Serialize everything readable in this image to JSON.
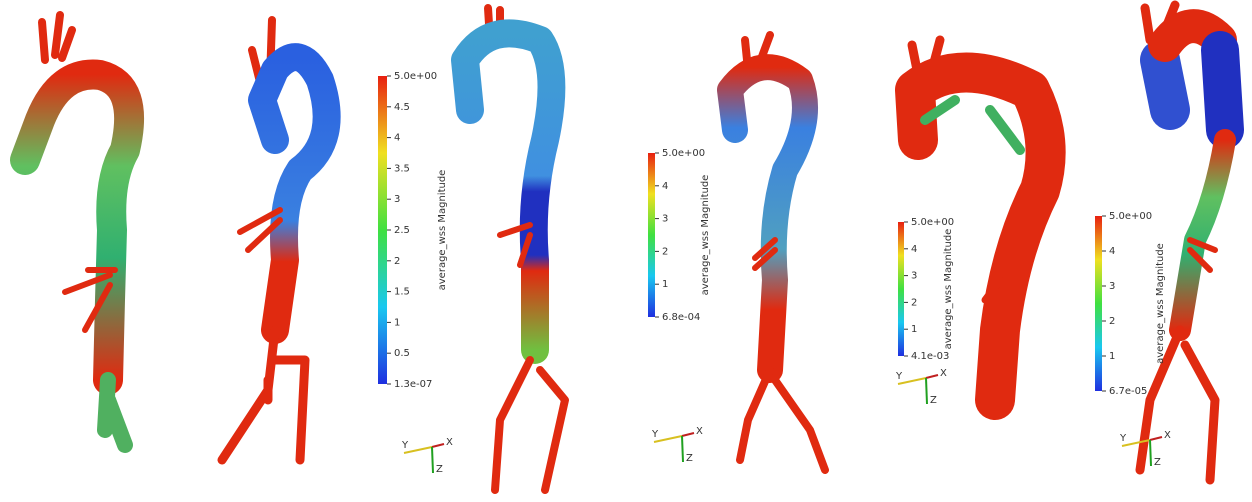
{
  "colorbars": [
    {
      "title": "average_wss Magnitude",
      "ticks": [
        "5.0e+00",
        "4.5",
        "4",
        "3.5",
        "3",
        "2.5",
        "2",
        "1.5",
        "1",
        "0.5",
        "1.3e-07"
      ]
    },
    {
      "title": "average_wss Magnitude",
      "ticks": [
        "5.0e+00",
        "4",
        "3",
        "2",
        "1",
        "6.8e-04"
      ]
    },
    {
      "title": "average_wss Magnitude",
      "ticks": [
        "5.0e+00",
        "4",
        "3",
        "2",
        "1",
        "4.1e-03"
      ]
    },
    {
      "title": "average_wss Magnitude",
      "ticks": [
        "5.0e+00",
        "4",
        "3",
        "2",
        "1",
        "6.7e-05"
      ]
    }
  ],
  "axes_triads": [
    {
      "y": "Y",
      "x": "X",
      "z": "Z"
    },
    {
      "y": "Y",
      "x": "X",
      "z": "Z"
    },
    {
      "y": "Y",
      "x": "X",
      "z": "Z"
    },
    {
      "y": "Y",
      "x": "X",
      "z": "Z"
    }
  ]
}
